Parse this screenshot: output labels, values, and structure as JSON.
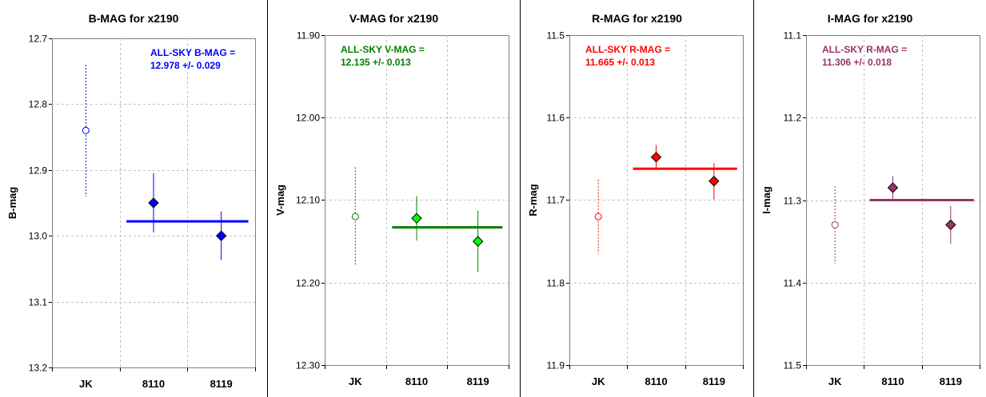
{
  "chart_data": [
    {
      "type": "scatter",
      "title": "B-MAG for x2190",
      "ylabel": "B-mag",
      "xlabel": "",
      "categories": [
        "JK",
        "8110",
        "8119"
      ],
      "ylim": [
        12.7,
        13.2
      ],
      "y_inverted": true,
      "yticks": [
        "12.7",
        "12.8",
        "12.9",
        "13.0",
        "13.1",
        "13.2"
      ],
      "grid": true,
      "color": "#0000ff",
      "annotation": [
        "ALL-SKY B-MAG =",
        "12.978 +/- 0.029"
      ],
      "points": [
        {
          "x": "JK",
          "y": 12.84,
          "err": 0.1,
          "hollow": true
        },
        {
          "x": "8110",
          "y": 12.95,
          "err": 0.045,
          "hollow": false
        },
        {
          "x": "8119",
          "y": 13.0,
          "err": 0.037,
          "hollow": false
        }
      ],
      "mean_line": {
        "y": 12.978,
        "from": "8110",
        "to": "8119"
      }
    },
    {
      "type": "scatter",
      "title": "V-MAG for x2190",
      "ylabel": "V-mag",
      "xlabel": "",
      "categories": [
        "JK",
        "8110",
        "8119"
      ],
      "ylim": [
        11.9,
        12.3
      ],
      "y_inverted": true,
      "yticks": [
        "11.90",
        "12.00",
        "12.10",
        "12.20",
        "12.30"
      ],
      "grid": true,
      "color": "#008000",
      "marker_color": "#00ff00",
      "annotation": [
        "ALL-SKY V-MAG =",
        "12.135 +/- 0.013"
      ],
      "points": [
        {
          "x": "JK",
          "y": 12.12,
          "err": 0.06,
          "hollow": true
        },
        {
          "x": "8110",
          "y": 12.122,
          "err": 0.027,
          "hollow": false
        },
        {
          "x": "8119",
          "y": 12.15,
          "err": 0.037,
          "hollow": false
        }
      ],
      "mean_line": {
        "y": 12.133,
        "from": "8110",
        "to": "8119"
      }
    },
    {
      "type": "scatter",
      "title": "R-MAG for x2190",
      "ylabel": "R-mag",
      "xlabel": "",
      "categories": [
        "JK",
        "8110",
        "8119"
      ],
      "ylim": [
        11.5,
        11.9
      ],
      "y_inverted": true,
      "yticks": [
        "11.5",
        "11.6",
        "11.7",
        "11.8",
        "11.9"
      ],
      "grid": true,
      "color": "#ff0000",
      "annotation": [
        "ALL-SKY R-MAG =",
        "11.665 +/- 0.013"
      ],
      "points": [
        {
          "x": "JK",
          "y": 11.72,
          "err": 0.045,
          "hollow": true
        },
        {
          "x": "8110",
          "y": 11.648,
          "err": 0.015,
          "hollow": false
        },
        {
          "x": "8119",
          "y": 11.677,
          "err": 0.022,
          "hollow": false
        }
      ],
      "mean_line": {
        "y": 11.662,
        "from": "8110",
        "to": "8119"
      }
    },
    {
      "type": "scatter",
      "title": "I-MAG for x2190",
      "ylabel": "I-mag",
      "xlabel": "",
      "categories": [
        "JK",
        "8110",
        "8119"
      ],
      "ylim": [
        11.1,
        11.5
      ],
      "y_inverted": true,
      "yticks": [
        "11.1",
        "11.2",
        "11.3",
        "11.4",
        "11.5"
      ],
      "grid": true,
      "color": "#993366",
      "annotation": [
        "ALL-SKY R-MAG =",
        "11.306 +/- 0.018"
      ],
      "points": [
        {
          "x": "JK",
          "y": 11.33,
          "err": 0.047,
          "hollow": true
        },
        {
          "x": "8110",
          "y": 11.285,
          "err": 0.014,
          "hollow": false
        },
        {
          "x": "8119",
          "y": 11.33,
          "err": 0.023,
          "hollow": false
        }
      ],
      "mean_line": {
        "y": 11.3,
        "from": "8110",
        "to": "8119"
      }
    }
  ]
}
